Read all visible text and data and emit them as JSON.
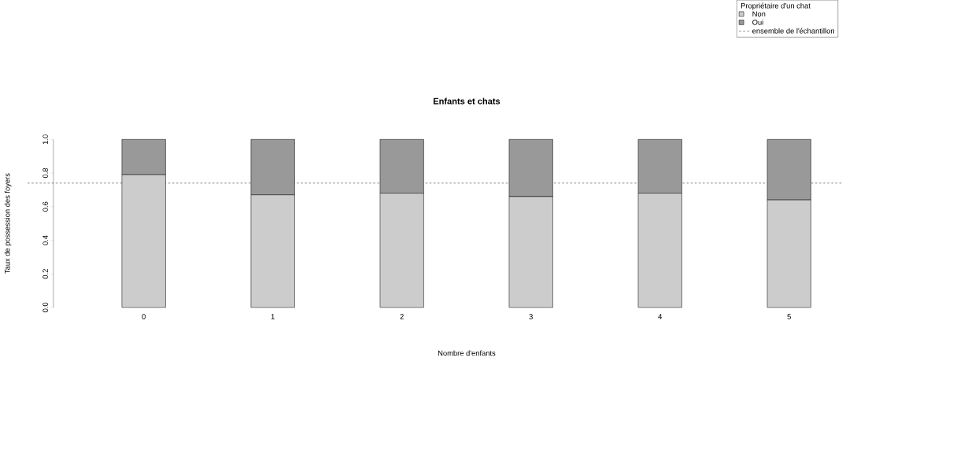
{
  "chart_data": {
    "type": "bar",
    "title": "Enfants et chats",
    "xlabel": "Nombre d'enfants",
    "ylabel": "Taux de possession des foyers",
    "legend_title": "Propriétaire d'un chat",
    "categories": [
      "0",
      "1",
      "2",
      "3",
      "4",
      "5"
    ],
    "stacked": true,
    "series": [
      {
        "name": "Non",
        "color": "#cccccc",
        "values": [
          0.79,
          0.67,
          0.68,
          0.66,
          0.68,
          0.64
        ]
      },
      {
        "name": "Oui",
        "color": "#999999",
        "values": [
          0.21,
          0.33,
          0.32,
          0.34,
          0.32,
          0.36
        ]
      }
    ],
    "ylim": [
      0,
      1
    ],
    "yticks": [
      {
        "value": 0,
        "label": "0.0"
      },
      {
        "value": 0.2,
        "label": "0.2"
      },
      {
        "value": 0.4,
        "label": "0.4"
      },
      {
        "value": 0.6,
        "label": "0.6"
      },
      {
        "value": 0.8,
        "label": "0.8"
      },
      {
        "value": 1,
        "label": "1.0"
      }
    ],
    "ref_lines": [
      {
        "axis": "y",
        "value": 0.74,
        "label": "ensemble de l'échantillon",
        "line_style": "dashed",
        "color": "#333333"
      }
    ],
    "legend": "top right"
  }
}
